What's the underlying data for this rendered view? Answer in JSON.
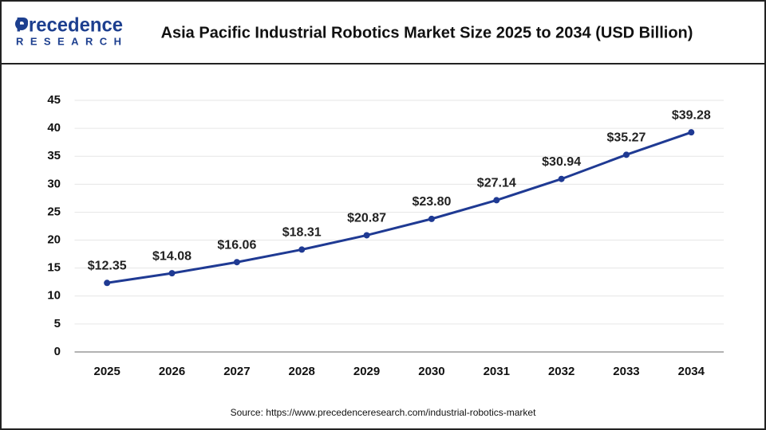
{
  "logo": {
    "name": "Precedence",
    "tagline": "RESEARCH"
  },
  "chart_data": {
    "type": "line",
    "title": "Asia Pacific Industrial Robotics Market Size 2025 to 2034 (USD Billion)",
    "categories": [
      "2025",
      "2026",
      "2027",
      "2028",
      "2029",
      "2030",
      "2031",
      "2032",
      "2033",
      "2034"
    ],
    "series": [
      {
        "color": "#1f3a93",
        "values": [
          12.35,
          14.08,
          16.06,
          18.31,
          20.87,
          23.8,
          27.14,
          30.94,
          35.27,
          39.28
        ],
        "value_labels": [
          "$12.35",
          "$14.08",
          "$16.06",
          "$18.31",
          "$20.87",
          "$23.80",
          "$27.14",
          "$30.94",
          "$35.27",
          "$39.28"
        ]
      }
    ],
    "ylim": [
      0,
      45
    ],
    "yticks": [
      0,
      5,
      10,
      15,
      20,
      25,
      30,
      35,
      40,
      45
    ],
    "grid": true,
    "source": "Source: https://www.precedenceresearch.com/industrial-robotics-market"
  }
}
